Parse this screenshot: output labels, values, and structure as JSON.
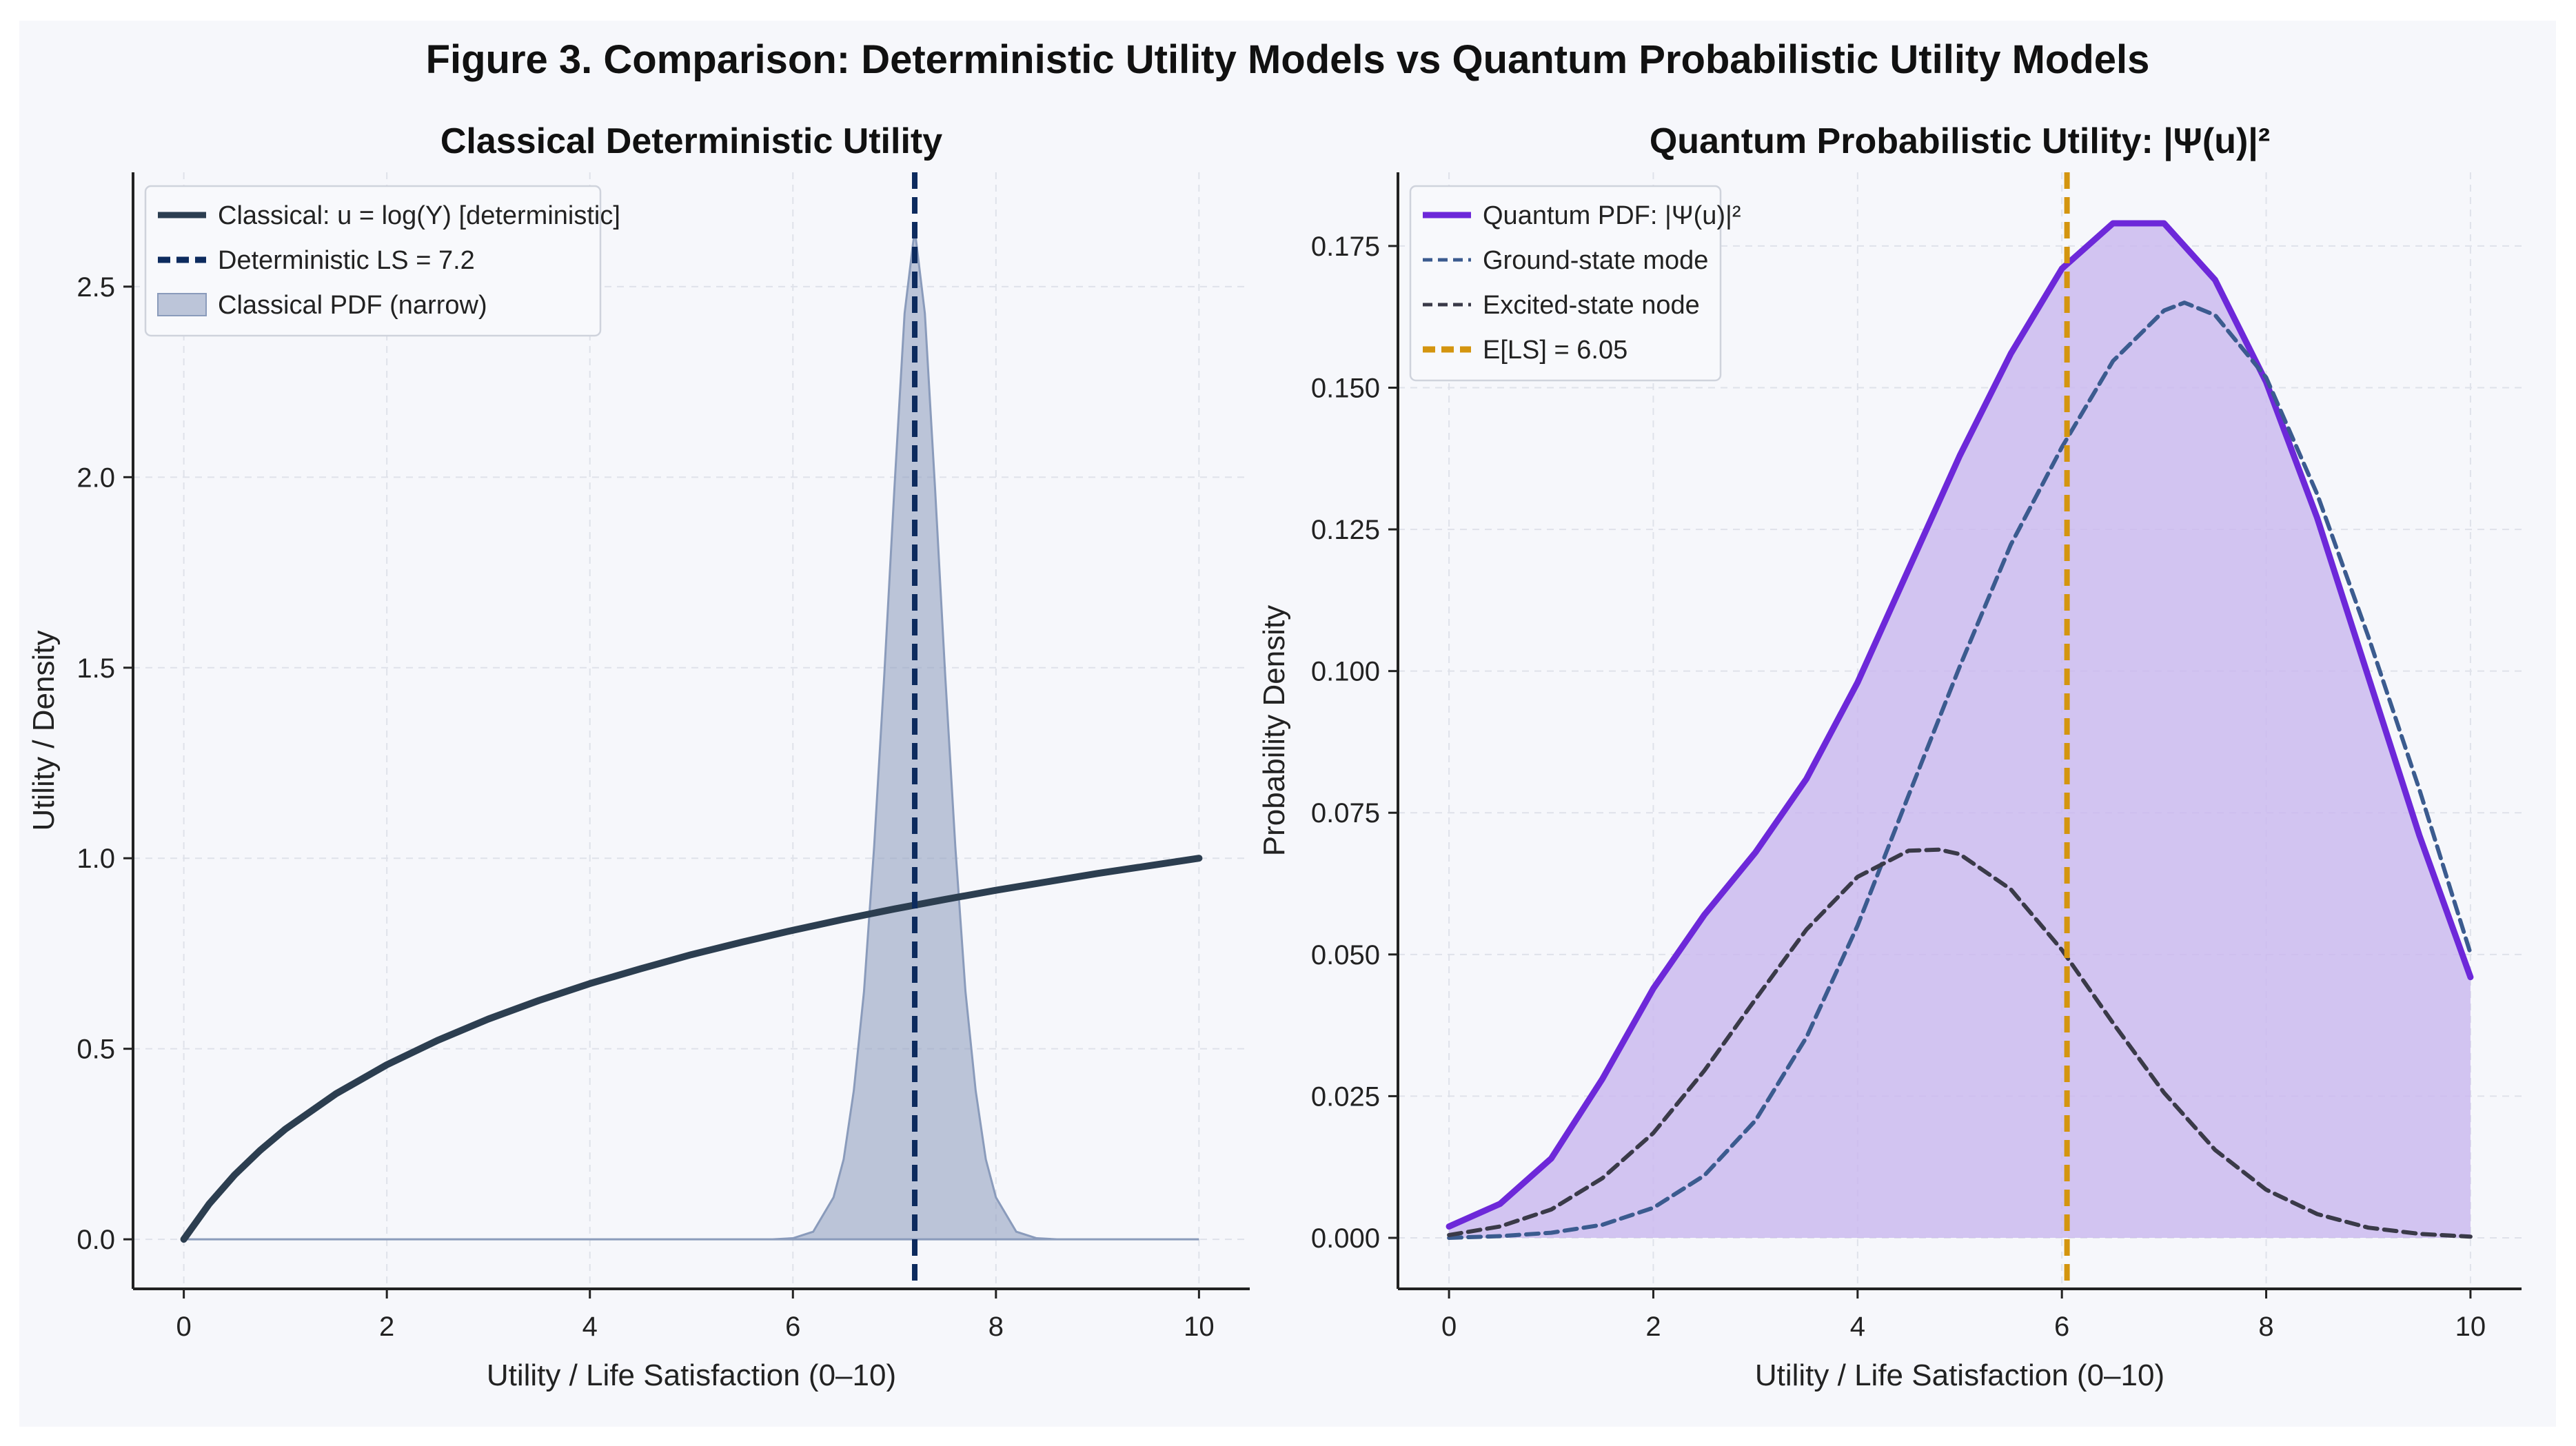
{
  "figure": {
    "suptitle": "Figure 3. Comparison: Deterministic Utility Models vs Quantum Probabilistic Utility Models",
    "background": "#f6f7fb"
  },
  "chart_data": [
    {
      "type": "line",
      "title": "Classical Deterministic Utility",
      "xlabel": "Utility / Life Satisfaction (0–10)",
      "ylabel": "Utility / Density",
      "xlim": [
        -0.5,
        10.5
      ],
      "ylim": [
        -0.13,
        2.8
      ],
      "xticks": [
        0,
        2,
        4,
        6,
        8,
        10
      ],
      "yticks": [
        0.0,
        0.5,
        1.0,
        1.5,
        2.0,
        2.5
      ],
      "ytick_labels": [
        "0.0",
        "0.5",
        "1.0",
        "1.5",
        "2.0",
        "2.5"
      ],
      "grid": true,
      "legend_position": "top-left",
      "series": [
        {
          "name": "Classical: u = log(Y) [deterministic]",
          "kind": "line",
          "color": "#2c3e50",
          "x": [
            0,
            0.25,
            0.5,
            0.75,
            1,
            1.5,
            2,
            2.5,
            3,
            3.5,
            4,
            4.5,
            5,
            5.5,
            6,
            6.5,
            7,
            7.5,
            8,
            8.5,
            9,
            9.5,
            10
          ],
          "y": [
            0.0,
            0.093,
            0.169,
            0.233,
            0.289,
            0.382,
            0.458,
            0.522,
            0.578,
            0.627,
            0.671,
            0.71,
            0.747,
            0.78,
            0.811,
            0.84,
            0.867,
            0.892,
            0.916,
            0.938,
            0.96,
            0.98,
            1.0
          ]
        },
        {
          "name": "Deterministic LS = 7.2",
          "kind": "vline",
          "color": "#0d2b5e",
          "x": 7.2
        },
        {
          "name": "Classical PDF (narrow)",
          "kind": "area",
          "color": "#8a9bbb",
          "x": [
            0,
            5.8,
            6.0,
            6.2,
            6.4,
            6.5,
            6.6,
            6.7,
            6.8,
            6.9,
            7.0,
            7.1,
            7.2,
            7.3,
            7.4,
            7.5,
            7.6,
            7.7,
            7.8,
            7.9,
            8.0,
            8.2,
            8.4,
            8.6,
            10
          ],
          "y": [
            0.0,
            0.0,
            0.003,
            0.02,
            0.11,
            0.21,
            0.39,
            0.65,
            1.03,
            1.48,
            1.97,
            2.43,
            2.65,
            2.43,
            1.97,
            1.48,
            1.03,
            0.65,
            0.39,
            0.21,
            0.11,
            0.02,
            0.003,
            0.0,
            0.0
          ]
        }
      ]
    },
    {
      "type": "line",
      "title": "Quantum Probabilistic Utility: |Ψ(u)|²",
      "xlabel": "Utility / Life Satisfaction (0–10)",
      "ylabel": "Probability Density",
      "xlim": [
        -0.5,
        10.5
      ],
      "ylim": [
        -0.009,
        0.188
      ],
      "xticks": [
        0,
        2,
        4,
        6,
        8,
        10
      ],
      "yticks": [
        0.0,
        0.025,
        0.05,
        0.075,
        0.1,
        0.125,
        0.15,
        0.175
      ],
      "ytick_labels": [
        "0.000",
        "0.025",
        "0.050",
        "0.075",
        "0.100",
        "0.125",
        "0.150",
        "0.175"
      ],
      "grid": true,
      "legend_position": "top-left",
      "series": [
        {
          "name": "Quantum PDF: |Ψ(u)|²",
          "kind": "line-filled",
          "color": "#6d28d9",
          "fill_color": "#c9b6ef",
          "x": [
            0,
            0.5,
            1,
            1.5,
            2,
            2.5,
            3,
            3.5,
            4,
            4.5,
            5,
            5.5,
            6,
            6.5,
            7,
            7.5,
            8,
            8.5,
            9,
            9.5,
            10
          ],
          "y": [
            0.002,
            0.006,
            0.014,
            0.028,
            0.044,
            0.057,
            0.068,
            0.081,
            0.098,
            0.118,
            0.138,
            0.156,
            0.171,
            0.179,
            0.179,
            0.169,
            0.151,
            0.127,
            0.099,
            0.071,
            0.046
          ]
        },
        {
          "name": "Ground-state mode",
          "kind": "dashed",
          "color": "#3b5b8f",
          "x": [
            0,
            0.5,
            1,
            1.5,
            2,
            2.5,
            3,
            3.5,
            4,
            4.5,
            5,
            5.5,
            6,
            6.5,
            7,
            7.2,
            7.5,
            8,
            8.5,
            9,
            9.5,
            10
          ],
          "y": [
            0.0,
            0.0003,
            0.0009,
            0.0023,
            0.0053,
            0.011,
            0.0207,
            0.0354,
            0.0551,
            0.0781,
            0.1008,
            0.1223,
            0.1395,
            0.1547,
            0.1636,
            0.165,
            0.1628,
            0.1518,
            0.1312,
            0.1061,
            0.0791,
            0.0502
          ]
        },
        {
          "name": "Excited-state node",
          "kind": "dashed",
          "color": "#3a3a48",
          "x": [
            0,
            0.5,
            1,
            1.5,
            2,
            2.5,
            3,
            3.5,
            4,
            4.5,
            4.8,
            5,
            5.5,
            6,
            6.5,
            7,
            7.5,
            8,
            8.5,
            9,
            9.5,
            10
          ],
          "y": [
            0.0005,
            0.002,
            0.005,
            0.0105,
            0.0185,
            0.0295,
            0.0421,
            0.0544,
            0.0637,
            0.0683,
            0.0685,
            0.0677,
            0.0615,
            0.0508,
            0.0379,
            0.0256,
            0.0155,
            0.0085,
            0.0042,
            0.0018,
            0.0007,
            0.0002
          ]
        },
        {
          "name": "E[LS] = 6.05",
          "kind": "vline",
          "color": "#d4950f",
          "x": 6.05
        }
      ]
    }
  ]
}
